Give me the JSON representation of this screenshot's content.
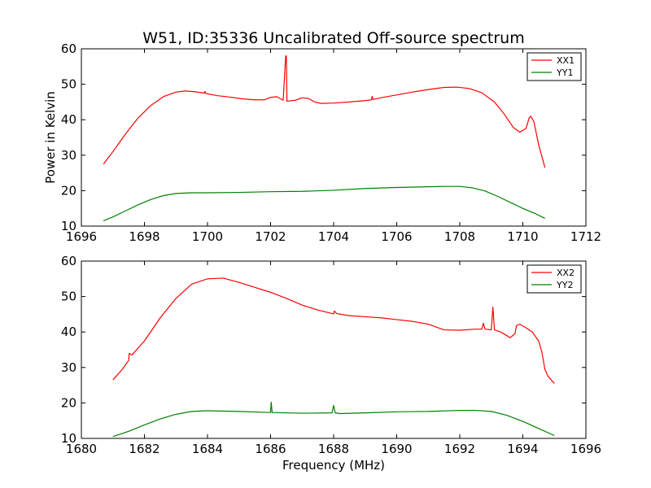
{
  "title": "W51, ID:35336 Uncalibrated Off-source spectrum",
  "chart_data": [
    {
      "type": "line",
      "title": "W51, ID:35336 Uncalibrated Off-source spectrum",
      "xlabel": "",
      "ylabel": "Power in Kelvin",
      "xlim": [
        1696,
        1712
      ],
      "ylim": [
        10,
        60
      ],
      "xticks": [
        "1696",
        "1698",
        "1700",
        "1702",
        "1704",
        "1706",
        "1708",
        "1710",
        "1712"
      ],
      "yticks": [
        "10",
        "20",
        "30",
        "40",
        "50",
        "60"
      ],
      "grid": false,
      "legend": "top-right",
      "series": [
        {
          "name": "XX1",
          "color": "#ff0000",
          "x": [
            1696.7,
            1697.0,
            1697.4,
            1697.8,
            1698.2,
            1698.6,
            1699.0,
            1699.3,
            1699.6,
            1699.9,
            1699.92,
            1699.95,
            1700.3,
            1700.7,
            1701.1,
            1701.5,
            1701.8,
            1702.0,
            1702.2,
            1702.4,
            1702.48,
            1702.5,
            1702.52,
            1702.6,
            1702.8,
            1703.0,
            1703.2,
            1703.4,
            1703.6,
            1704.0,
            1704.5,
            1705.0,
            1705.2,
            1705.22,
            1705.25,
            1705.5,
            1706.0,
            1706.5,
            1707.0,
            1707.5,
            1707.9,
            1708.3,
            1708.7,
            1709.1,
            1709.4,
            1709.7,
            1709.9,
            1710.1,
            1710.2,
            1710.25,
            1710.35,
            1710.5,
            1710.7
          ],
          "values": [
            27.5,
            31,
            36,
            40.5,
            44,
            46.5,
            47.8,
            48.1,
            47.9,
            47.5,
            48,
            47.4,
            46.8,
            46.4,
            45.9,
            45.6,
            45.6,
            46.3,
            46.5,
            45.5,
            58,
            58,
            45.2,
            45.3,
            45.5,
            46.2,
            46,
            45,
            44.6,
            44.7,
            45,
            45.4,
            45.6,
            46.6,
            45.7,
            46.2,
            47,
            47.8,
            48.5,
            49.1,
            49.2,
            48.8,
            47.6,
            45,
            41.7,
            37.8,
            36.5,
            37.5,
            40.5,
            41,
            39.5,
            33,
            26.5
          ]
        },
        {
          "name": "YY1",
          "color": "#008000",
          "x": [
            1696.7,
            1697.0,
            1697.4,
            1697.8,
            1698.2,
            1698.6,
            1699.0,
            1699.5,
            1700.0,
            1701.0,
            1702.0,
            1703.0,
            1704.0,
            1705.0,
            1706.0,
            1707.0,
            1707.5,
            1708.0,
            1708.4,
            1708.8,
            1709.2,
            1709.6,
            1710.0,
            1710.4,
            1710.7
          ],
          "values": [
            11.5,
            12.6,
            14.3,
            16,
            17.5,
            18.6,
            19.2,
            19.4,
            19.4,
            19.5,
            19.7,
            19.8,
            20.1,
            20.6,
            20.9,
            21.1,
            21.2,
            21.2,
            20.8,
            19.9,
            18.4,
            16.7,
            15,
            13.5,
            12.2
          ]
        }
      ]
    },
    {
      "type": "line",
      "title": "",
      "xlabel": "Frequency (MHz)",
      "ylabel": "",
      "xlim": [
        1680,
        1696
      ],
      "ylim": [
        10,
        60
      ],
      "xticks": [
        "1680",
        "1682",
        "1684",
        "1686",
        "1688",
        "1690",
        "1692",
        "1694",
        "1696"
      ],
      "yticks": [
        "10",
        "20",
        "30",
        "40",
        "50",
        "60"
      ],
      "grid": false,
      "legend": "top-right",
      "series": [
        {
          "name": "XX2",
          "color": "#ff0000",
          "x": [
            1681.0,
            1681.3,
            1681.5,
            1681.52,
            1681.6,
            1682.0,
            1682.5,
            1683.0,
            1683.5,
            1684.0,
            1684.5,
            1685.0,
            1685.5,
            1686.0,
            1686.5,
            1687.0,
            1687.5,
            1688.0,
            1688.02,
            1688.1,
            1688.5,
            1689.0,
            1689.5,
            1690.0,
            1690.5,
            1691.0,
            1691.5,
            1692.0,
            1692.5,
            1692.7,
            1692.75,
            1692.8,
            1693.0,
            1693.05,
            1693.1,
            1693.3,
            1693.6,
            1693.75,
            1693.8,
            1693.9,
            1694.1,
            1694.3,
            1694.5,
            1694.6,
            1694.7,
            1694.8,
            1695.0
          ],
          "values": [
            26.5,
            29.5,
            32,
            34,
            33.5,
            37.5,
            44,
            49.5,
            53.5,
            55,
            55.2,
            54,
            52.6,
            51.2,
            49.5,
            47.6,
            46.2,
            45.1,
            45.9,
            45.2,
            44.6,
            44.3,
            44,
            43.5,
            43,
            42.2,
            40.6,
            40.5,
            40.8,
            40.8,
            42.5,
            40.8,
            40.6,
            47,
            40.6,
            40,
            38.4,
            39.5,
            41.8,
            42.2,
            41.2,
            40,
            37.5,
            34.5,
            29.5,
            27.5,
            25.5
          ]
        },
        {
          "name": "YY2",
          "color": "#008000",
          "x": [
            1681.0,
            1681.5,
            1682.0,
            1682.5,
            1683.0,
            1683.5,
            1684.0,
            1685.0,
            1686.0,
            1686.02,
            1686.05,
            1687.0,
            1687.95,
            1688.0,
            1688.05,
            1688.2,
            1689.0,
            1690.0,
            1691.0,
            1692.0,
            1692.5,
            1693.0,
            1693.5,
            1694.0,
            1694.5,
            1695.0
          ],
          "values": [
            10.5,
            12,
            13.8,
            15.5,
            16.8,
            17.6,
            17.8,
            17.6,
            17.3,
            20.2,
            17.3,
            17.1,
            17.2,
            19.3,
            17.2,
            17,
            17.2,
            17.5,
            17.6,
            17.9,
            17.9,
            17.6,
            16.5,
            14.8,
            12.8,
            10.8
          ]
        }
      ]
    }
  ]
}
